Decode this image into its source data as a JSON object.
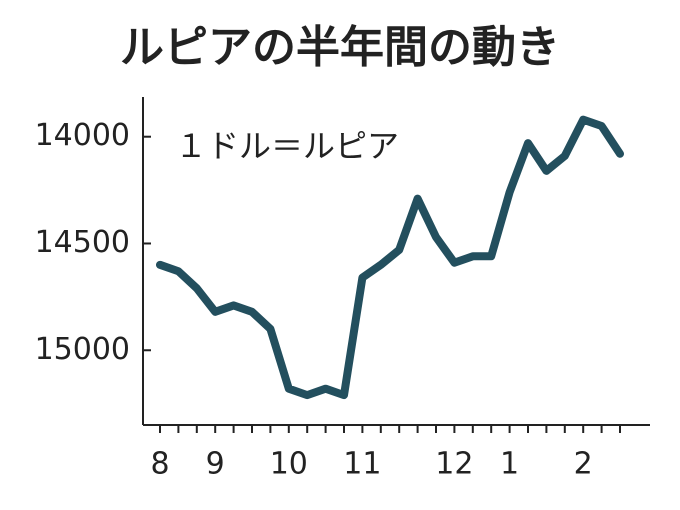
{
  "chart_data": {
    "type": "line",
    "title": "ルピアの半年間の動き",
    "annotation": "１ドル＝ルピア",
    "categories": [
      "8",
      null,
      null,
      "9",
      null,
      null,
      null,
      "10",
      null,
      null,
      null,
      "11",
      null,
      null,
      null,
      null,
      "12",
      null,
      null,
      "1",
      null,
      null,
      null,
      "2",
      null,
      null
    ],
    "series": [
      {
        "color": "#234f5e",
        "values": [
          14600,
          14630,
          14710,
          14820,
          14790,
          14820,
          14900,
          15180,
          15210,
          15180,
          15210,
          14660,
          14600,
          14530,
          14290,
          14470,
          14590,
          14560,
          14560,
          14260,
          14030,
          14160,
          14090,
          13920,
          13950,
          14080
        ]
      }
    ],
    "ylim": [
      15350,
      13800
    ],
    "yticks": [
      14000,
      14500,
      15000
    ],
    "inverted": true
  }
}
